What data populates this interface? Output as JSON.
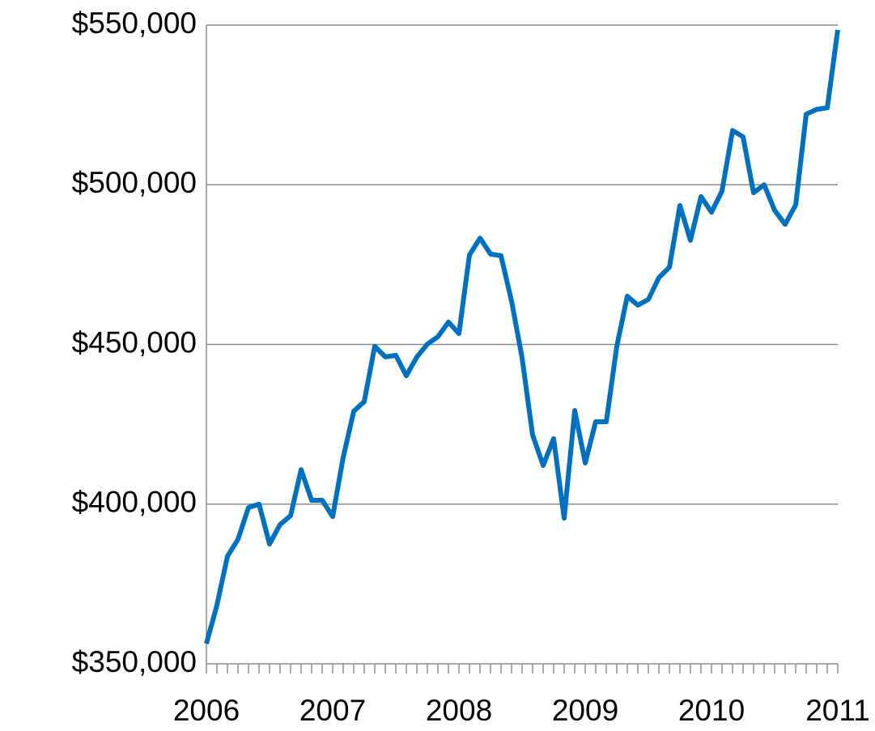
{
  "chart_data": {
    "type": "line",
    "x": [
      2006,
      2006.083,
      2006.167,
      2006.25,
      2006.333,
      2006.417,
      2006.5,
      2006.583,
      2006.667,
      2006.75,
      2006.833,
      2006.917,
      2007,
      2007.083,
      2007.167,
      2007.25,
      2007.333,
      2007.417,
      2007.5,
      2007.583,
      2007.667,
      2007.75,
      2007.833,
      2007.917,
      2008,
      2008.083,
      2008.167,
      2008.25,
      2008.333,
      2008.417,
      2008.5,
      2008.583,
      2008.667,
      2008.75,
      2008.833,
      2008.917,
      2009,
      2009.083,
      2009.167,
      2009.25,
      2009.333,
      2009.417,
      2009.5,
      2009.583,
      2009.667,
      2009.75,
      2009.833,
      2009.917,
      2010,
      2010.083,
      2010.167,
      2010.25,
      2010.333,
      2010.417,
      2010.5,
      2010.583,
      2010.667,
      2010.75,
      2010.833,
      2010.917,
      2011
    ],
    "series": [
      {
        "color": "#0070c0",
        "values": [
          356300,
          368300,
          383700,
          389000,
          398900,
          400000,
          387500,
          393600,
          396400,
          410800,
          401200,
          401200,
          396100,
          414600,
          429100,
          432100,
          449400,
          446100,
          446600,
          440200,
          446100,
          450100,
          452400,
          457000,
          453400,
          478000,
          483300,
          478300,
          477800,
          463500,
          445800,
          421700,
          412100,
          420500,
          395600,
          429300,
          412900,
          425800,
          425800,
          449400,
          465100,
          462300,
          464100,
          470900,
          474200,
          493500,
          482600,
          496300,
          491400,
          498000,
          517000,
          515000,
          497500,
          500000,
          492000,
          487600,
          493700,
          522100,
          523600,
          524100,
          548500
        ]
      }
    ],
    "xlim": [
      2006,
      2011
    ],
    "xticks": [
      2006,
      2007,
      2008,
      2009,
      2010,
      2011
    ],
    "ylim": [
      350000,
      550000
    ],
    "yticks": [
      {
        "value": 350000,
        "label": "$350,000"
      },
      {
        "value": 400000,
        "label": "$400,000"
      },
      {
        "value": 450000,
        "label": "$450,000"
      },
      {
        "value": 500000,
        "label": "$500,000"
      },
      {
        "value": 550000,
        "label": "$550,000"
      }
    ],
    "grid": true
  }
}
